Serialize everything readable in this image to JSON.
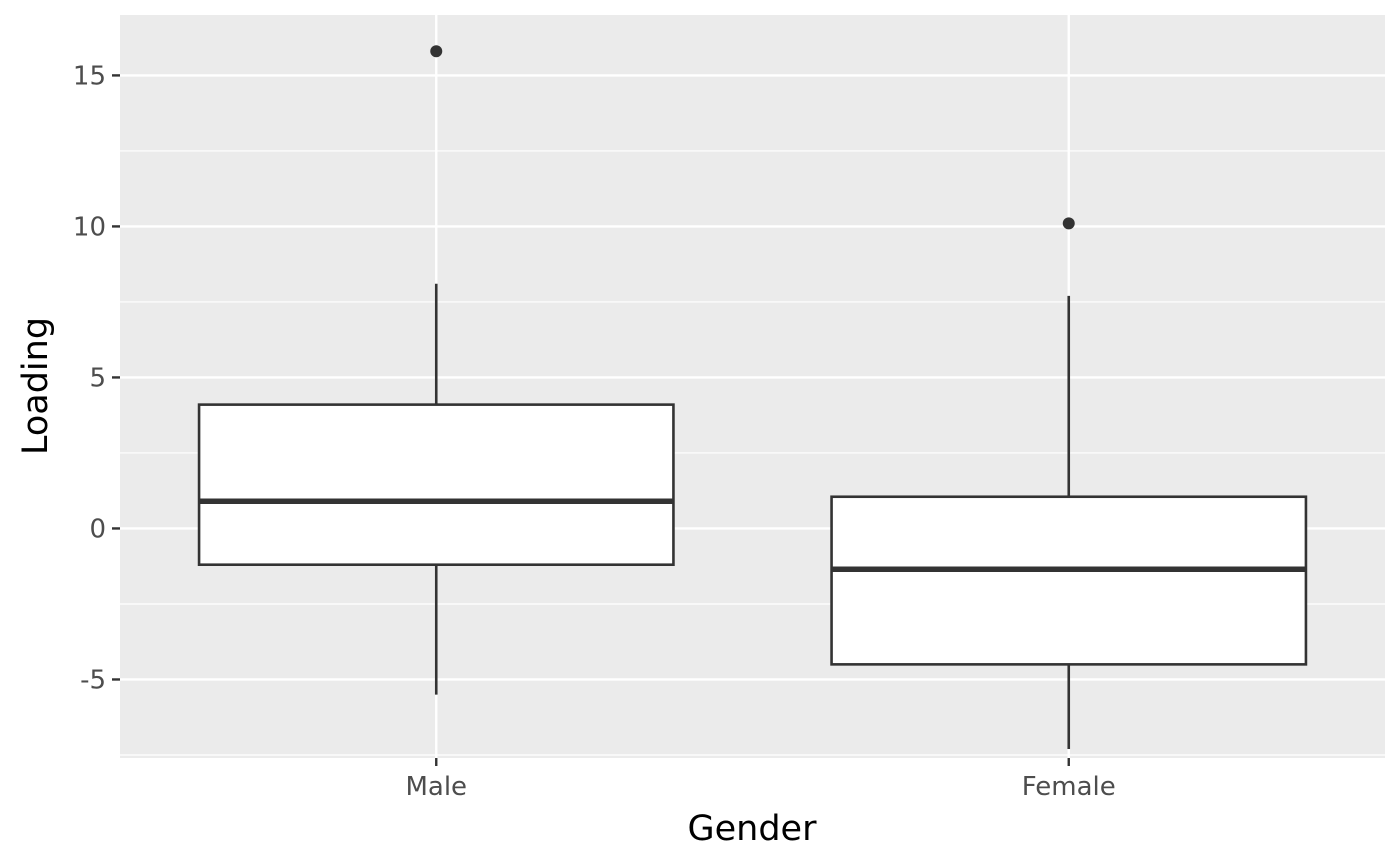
{
  "chart_data": {
    "type": "boxplot",
    "xlabel": "Gender",
    "ylabel": "Loading",
    "categories": [
      "Male",
      "Female"
    ],
    "boxes": [
      {
        "category": "Male",
        "whisker_low": -5.5,
        "q1": -1.2,
        "median": 0.9,
        "q3": 4.1,
        "whisker_high": 8.1,
        "outliers": [
          15.8
        ]
      },
      {
        "category": "Female",
        "whisker_low": -7.3,
        "q1": -4.5,
        "median": -1.35,
        "q3": 1.05,
        "whisker_high": 7.7,
        "outliers": [
          10.1
        ]
      }
    ],
    "ylim": [
      -7.6,
      17.0
    ],
    "yticks": [
      -5,
      0,
      5,
      10,
      15
    ],
    "ytick_labels": [
      "-5",
      "0",
      "5",
      "10",
      "15"
    ],
    "grid": true,
    "colors": {
      "panel_background": "#EBEBEB",
      "grid": "#FFFFFF",
      "box_fill": "#FFFFFF",
      "box_line": "#333333",
      "tick_text": "#4D4D4D",
      "tick_mark": "#333333"
    }
  }
}
